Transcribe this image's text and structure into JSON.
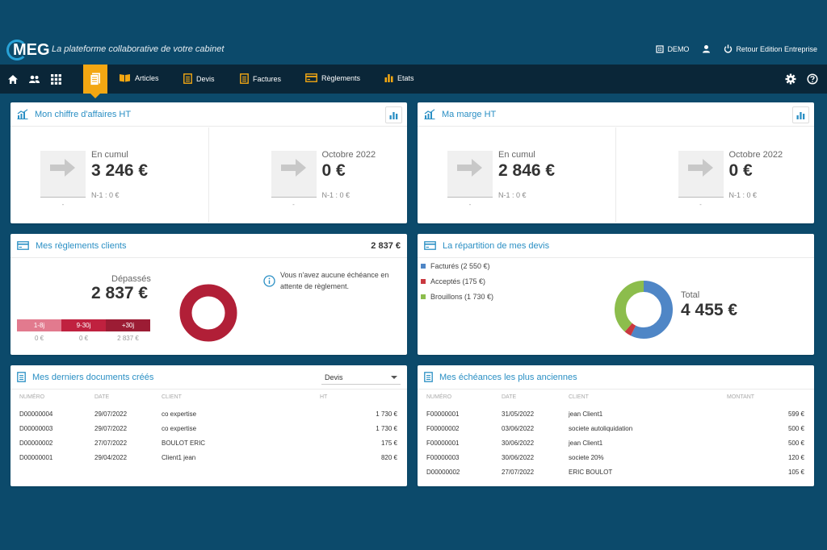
{
  "header": {
    "logo_text": "MEG",
    "tagline": "La plateforme collaborative de votre cabinet",
    "demo_label": "DEMO",
    "retour_label": "Retour Edition Entreprise"
  },
  "nav": {
    "items": [
      {
        "label": "Articles"
      },
      {
        "label": "Devis"
      },
      {
        "label": "Factures"
      },
      {
        "label": "Règlements"
      },
      {
        "label": "Etats"
      }
    ]
  },
  "ca_card": {
    "title": "Mon chiffre d'affaires HT",
    "left": {
      "label": "En cumul",
      "value": "3 246 €",
      "prev": "N-1 : 0 €",
      "dash": "-"
    },
    "right": {
      "label": "Octobre 2022",
      "value": "0 €",
      "prev": "N-1 : 0 €",
      "dash": "-"
    }
  },
  "marge_card": {
    "title": "Ma marge HT",
    "left": {
      "label": "En cumul",
      "value": "2 846 €",
      "prev": "N-1 : 0 €",
      "dash": "-"
    },
    "right": {
      "label": "Octobre 2022",
      "value": "0 €",
      "prev": "N-1 : 0 €",
      "dash": "-"
    }
  },
  "reglements_card": {
    "title": "Mes règlements clients",
    "amount": "2 837 €",
    "depasses_label": "Dépassés",
    "depasses_value": "2 837 €",
    "segments": [
      {
        "label": "1-8j",
        "value": "0 €",
        "color": "#e27a8e"
      },
      {
        "label": "9-30j",
        "value": "0 €",
        "color": "#c0213f"
      },
      {
        "label": "+30j",
        "value": "2 837 €",
        "color": "#9c1c34"
      }
    ],
    "info": "Vous n'avez aucune échéance en attente de règlement.",
    "donut_color": "#b11f37"
  },
  "devis_card": {
    "title": "La répartition de mes devis",
    "legend": [
      {
        "label": "Facturés (2 550 €)",
        "color": "#4f86c6",
        "value": 2550
      },
      {
        "label": "Acceptés (175 €)",
        "color": "#c9383f",
        "value": 175
      },
      {
        "label": "Brouillons (1 730 €)",
        "color": "#8cbd4c",
        "value": 1730
      }
    ],
    "total_label": "Total",
    "total_value": "4 455 €"
  },
  "docs_card": {
    "title": "Mes derniers documents créés",
    "select_value": "Devis",
    "headers": [
      "NUMÉRO",
      "DATE",
      "CLIENT",
      "HT"
    ],
    "rows": [
      [
        "D00000004",
        "29/07/2022",
        "co expertise",
        "1 730 €"
      ],
      [
        "D00000003",
        "29/07/2022",
        "co expertise",
        "1 730 €"
      ],
      [
        "D00000002",
        "27/07/2022",
        "BOULOT ERIC",
        "175 €"
      ],
      [
        "D00000001",
        "29/04/2022",
        "Client1 jean",
        "820 €"
      ]
    ]
  },
  "echeances_card": {
    "title": "Mes échéances les plus anciennes",
    "headers": [
      "NUMÉRO",
      "DATE",
      "CLIENT",
      "MONTANT"
    ],
    "rows": [
      [
        "F00000001",
        "31/05/2022",
        "jean Client1",
        "599 €"
      ],
      [
        "F00000002",
        "03/06/2022",
        "societe autoliquidation",
        "500 €"
      ],
      [
        "F00000001",
        "30/06/2022",
        "jean Client1",
        "500 €"
      ],
      [
        "F00000003",
        "30/06/2022",
        "societe 20%",
        "120 €"
      ],
      [
        "D00000002",
        "27/07/2022",
        "ERIC BOULOT",
        "105 €"
      ]
    ]
  },
  "colors": {
    "accent": "#2a8fc4",
    "nav_active": "#f3a712",
    "nav_bg": "#0a2638",
    "page_bg": "#0c4a6b"
  }
}
